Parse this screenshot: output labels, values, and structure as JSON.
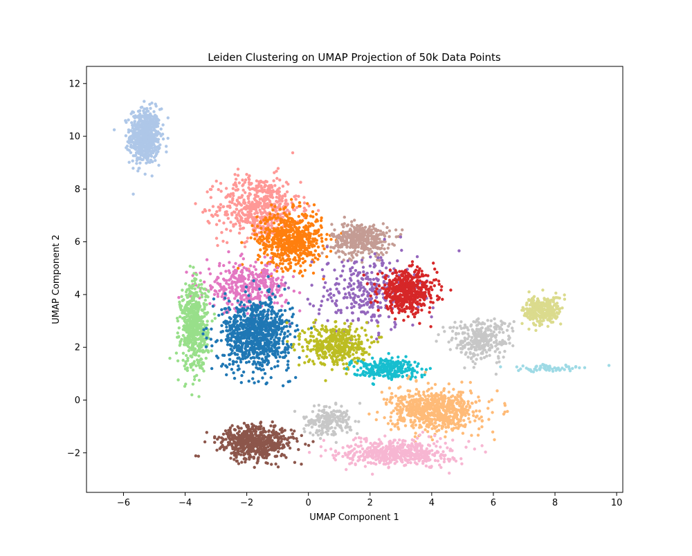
{
  "chart_data": {
    "type": "scatter",
    "title": "Leiden Clustering on UMAP Projection of 50k Data Points",
    "xlabel": "UMAP Component 1",
    "ylabel": "UMAP Component 2",
    "xlim": [
      -7.2,
      10.2
    ],
    "ylim": [
      -3.5,
      12.65
    ],
    "xticks": [
      -6,
      -4,
      -2,
      0,
      2,
      4,
      6,
      8,
      10
    ],
    "yticks": [
      -2,
      0,
      2,
      4,
      6,
      8,
      10,
      12
    ],
    "xtick_labels": [
      "−6",
      "−4",
      "−2",
      "0",
      "2",
      "4",
      "6",
      "8",
      "10"
    ],
    "ytick_labels": [
      "−2",
      "0",
      "2",
      "4",
      "6",
      "8",
      "10",
      "12"
    ],
    "grid": false,
    "legend": "none",
    "clusters": [
      {
        "color": "#aec7e8",
        "center": [
          -5.3,
          10.0
        ],
        "spread": [
          0.45,
          0.95
        ],
        "points": 620
      },
      {
        "color": "#ff9896",
        "center": [
          -1.6,
          7.3
        ],
        "spread": [
          1.2,
          1.1
        ],
        "points": 560
      },
      {
        "color": "#ff7f0e",
        "center": [
          -0.6,
          6.1
        ],
        "spread": [
          0.95,
          0.95
        ],
        "points": 620
      },
      {
        "color": "#c49c94",
        "center": [
          1.7,
          6.1
        ],
        "spread": [
          0.85,
          0.55
        ],
        "points": 380
      },
      {
        "color": "#9467bd",
        "center": [
          1.9,
          4.1
        ],
        "spread": [
          1.5,
          1.3
        ],
        "points": 300
      },
      {
        "color": "#d62728",
        "center": [
          3.2,
          4.1
        ],
        "spread": [
          0.85,
          0.7
        ],
        "points": 520
      },
      {
        "color": "#e377c2",
        "center": [
          -2.0,
          4.3
        ],
        "spread": [
          1.2,
          0.8
        ],
        "points": 360
      },
      {
        "color": "#98df8a",
        "center": [
          -3.7,
          2.8
        ],
        "spread": [
          0.4,
          1.5
        ],
        "points": 560
      },
      {
        "color": "#1f77b4",
        "center": [
          -1.7,
          2.5
        ],
        "spread": [
          1.0,
          1.2
        ],
        "points": 900
      },
      {
        "color": "#bcbd22",
        "center": [
          0.9,
          2.1
        ],
        "spread": [
          0.9,
          0.7
        ],
        "points": 420
      },
      {
        "color": "#17becf",
        "center": [
          2.5,
          1.2
        ],
        "spread": [
          1.0,
          0.35
        ],
        "points": 260
      },
      {
        "color": "#c7c7c7",
        "center": [
          5.6,
          2.3
        ],
        "spread": [
          0.9,
          0.7
        ],
        "points": 300
      },
      {
        "color": "#dbdb8d",
        "center": [
          7.6,
          3.4
        ],
        "spread": [
          0.55,
          0.5
        ],
        "points": 300
      },
      {
        "color": "#ffbb78",
        "center": [
          4.1,
          -0.4
        ],
        "spread": [
          1.3,
          0.7
        ],
        "points": 700
      },
      {
        "color": "#f7b6d2",
        "center": [
          2.9,
          -2.0
        ],
        "spread": [
          1.6,
          0.45
        ],
        "points": 500
      },
      {
        "color": "#8c564b",
        "center": [
          -1.7,
          -1.6
        ],
        "spread": [
          1.1,
          0.6
        ],
        "points": 580
      },
      {
        "color": "#c7c7c7",
        "center": [
          0.6,
          -0.8
        ],
        "spread": [
          0.7,
          0.5
        ],
        "points": 200
      },
      {
        "color": "#9edae5",
        "center": [
          7.8,
          1.2
        ],
        "spread": [
          1.1,
          0.12
        ],
        "points": 60
      }
    ]
  }
}
